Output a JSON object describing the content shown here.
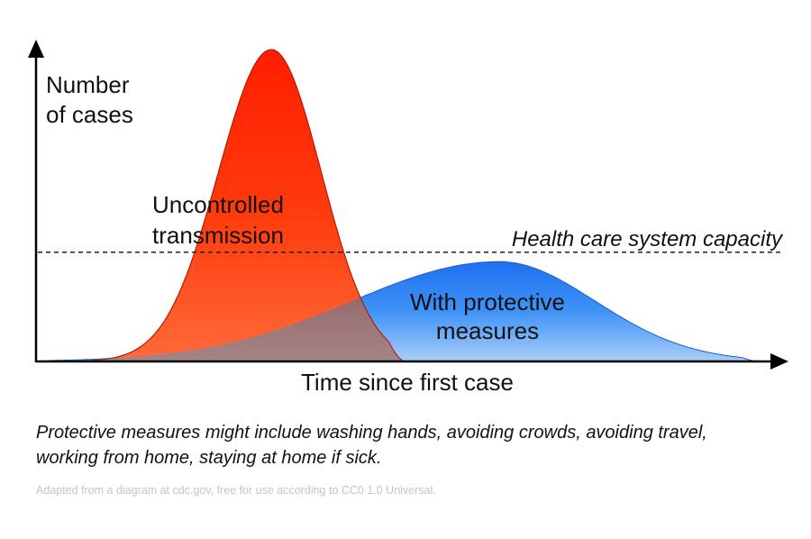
{
  "chart_data": {
    "type": "area",
    "title": "",
    "ylabel_lines": [
      "Number",
      "of cases"
    ],
    "xlabel": "Time since first case",
    "series": [
      {
        "name": "Uncontrolled transmission",
        "label_lines": [
          "Uncontrolled",
          "transmission"
        ],
        "color": "#ff2a00",
        "peak_time": 0.32,
        "peak_cases": 1.0
      },
      {
        "name": "With protective measures",
        "label_lines": [
          "With protective",
          "measures"
        ],
        "color": "#2e86f5",
        "peak_time": 0.63,
        "peak_cases": 0.32
      }
    ],
    "reference_line": {
      "label": "Health care system capacity",
      "value": 0.35,
      "style": "dashed"
    },
    "axes": {
      "x_ticks": false,
      "y_ticks": false,
      "grid": false
    }
  },
  "caption": {
    "line1": "Protective measures might include washing hands, avoiding crowds, avoiding travel,",
    "line2": "working from home, staying at home if sick."
  },
  "credit": "Adapted from a diagram at cdc.gov, free for use according to CC0 1.0 Universal.",
  "colors": {
    "uncontrolled": "#ff2a00",
    "protective": "#2e86f5",
    "overlap": "#9a6e6e",
    "axis": "#000000"
  }
}
